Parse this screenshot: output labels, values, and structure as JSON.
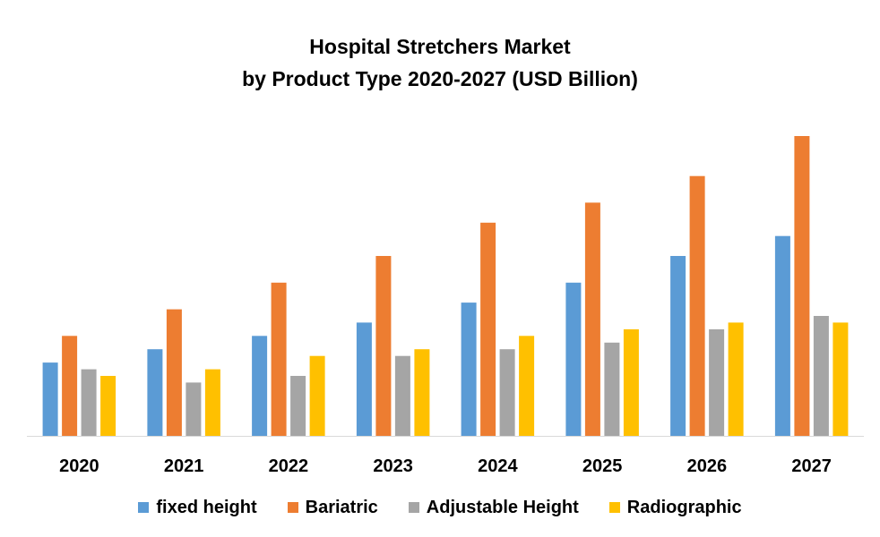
{
  "chart_data": {
    "type": "bar",
    "title": "Hospital Stretchers Market",
    "subtitle": "by Product Type 2020-2027 (USD Billion)",
    "xlabel": "",
    "ylabel": "",
    "categories": [
      "2020",
      "2021",
      "2022",
      "2023",
      "2024",
      "2025",
      "2026",
      "2027"
    ],
    "series": [
      {
        "name": "fixed height",
        "color": "#5B9BD5",
        "values": [
          1.1,
          1.3,
          1.5,
          1.7,
          2.0,
          2.3,
          2.7,
          3.0
        ]
      },
      {
        "name": "Bariatric",
        "color": "#ED7D31",
        "values": [
          1.5,
          1.9,
          2.3,
          2.7,
          3.2,
          3.5,
          3.9,
          4.5
        ]
      },
      {
        "name": "Adjustable Height",
        "color": "#A5A5A5",
        "values": [
          1.0,
          0.8,
          0.9,
          1.2,
          1.3,
          1.4,
          1.6,
          1.8
        ]
      },
      {
        "name": "Radiographic",
        "color": "#FFC000",
        "values": [
          0.9,
          1.0,
          1.2,
          1.3,
          1.5,
          1.6,
          1.7,
          1.7
        ]
      }
    ],
    "ylim": [
      0,
      4.5
    ],
    "grid": false,
    "legend_position": "bottom"
  }
}
